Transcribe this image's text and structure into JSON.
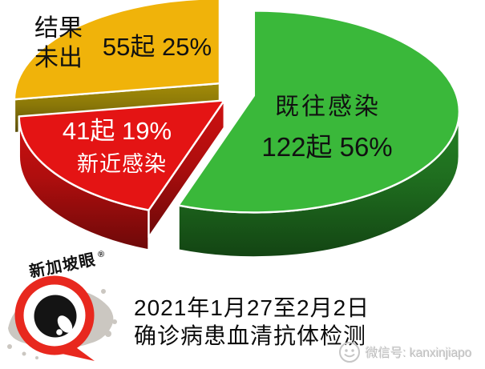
{
  "chart_data": {
    "type": "pie",
    "style": "3d-exploded-pie",
    "unit": "起",
    "slices": [
      {
        "id": "prior-infection",
        "name": "既往感染",
        "count": 122,
        "percent": 56,
        "stat_text": "122起 56%",
        "color": "#3AB83A",
        "side_color": "#1F6E1F",
        "label_color": "#111111"
      },
      {
        "id": "recent-infection",
        "name": "新近感染",
        "count": 41,
        "percent": 19,
        "stat_text": "41起 19%",
        "color": "#E41414",
        "side_color": "#AF0E0E",
        "label_color": "#FFFFFF"
      },
      {
        "id": "pending-results",
        "name": "结果未出",
        "count": 55,
        "percent": 25,
        "stat_text": "55起 25%",
        "color": "#F0B30A",
        "side_color": "#8A7708",
        "label_color": "#111111"
      }
    ],
    "start_angle_deg": 0,
    "clockwise": true,
    "legend": "none",
    "caption": {
      "line1": "2021年1月27至2月2日",
      "line2": "确诊病患血清抗体检测"
    }
  },
  "branding": {
    "logo_text": "新加坡眼",
    "registered_mark": "®",
    "watermark_text": "微信号: kanxinjiapo",
    "colors": {
      "logo_ring": "#E8281E",
      "logo_eye": "#141414",
      "logo_map": "#CBC7C1",
      "watermark": "#C2C2C2"
    }
  }
}
